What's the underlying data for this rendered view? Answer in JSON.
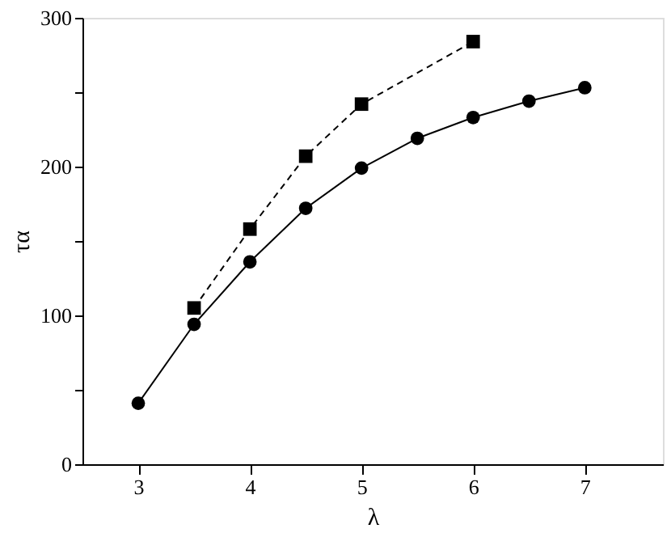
{
  "chart_data": {
    "type": "line",
    "xlabel": "λ",
    "ylabel": "τα",
    "xlim": [
      2.5,
      7.7
    ],
    "ylim": [
      0,
      300
    ],
    "xticks": [
      3,
      4,
      5,
      6,
      7
    ],
    "yticks": [
      0,
      {
        "value": 50,
        "label": null
      },
      100,
      {
        "value": 150,
        "label": null
      },
      200,
      {
        "value": 250,
        "label": null
      },
      300
    ],
    "grid": false,
    "series": [
      {
        "color": "#000000",
        "marker": "circle",
        "line_style": "solid",
        "x": [
          3,
          3.5,
          4,
          4.5,
          5,
          5.5,
          6,
          6.5,
          7
        ],
        "values": [
          41,
          94,
          136,
          172,
          199,
          219,
          233,
          244,
          253
        ]
      },
      {
        "color": "#000000",
        "marker": "square",
        "line_style": "dashed",
        "x": [
          3.5,
          4,
          4.5,
          5,
          6
        ],
        "values": [
          105,
          158,
          207,
          242,
          284
        ]
      }
    ]
  }
}
